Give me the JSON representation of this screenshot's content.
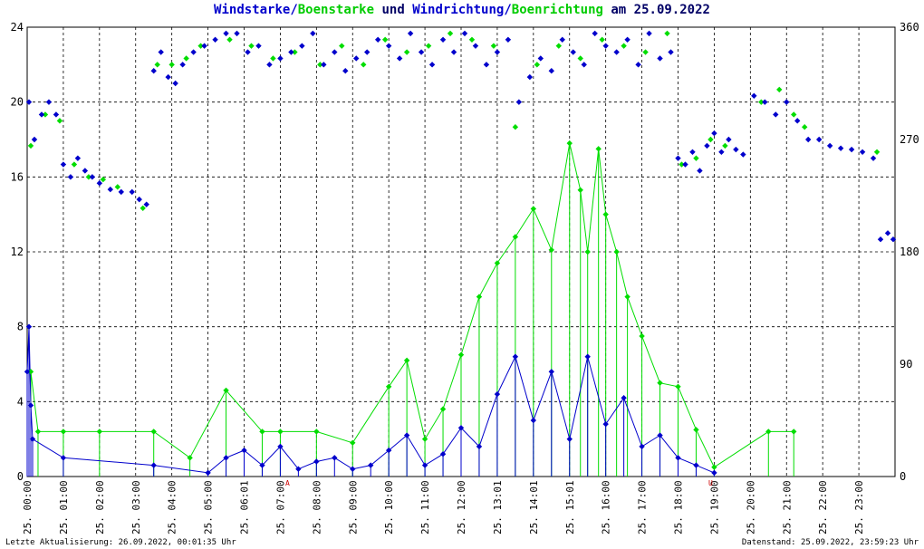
{
  "header": {
    "title_part1": "Windstarke/",
    "title_part2": "Boenstarke",
    "title_part3": " und ",
    "title_part4": "Windrichtung/",
    "title_part5": "Boenrichtung",
    "title_part6": " am 25.09.2022"
  },
  "footer": {
    "left": "Letzte Aktualisierung: 26.09.2022, 00:01:35 Uhr",
    "right": "Datenstand: 25.09.2022, 23:59:23 Uhr"
  },
  "colors": {
    "wind": "#0000cc",
    "gust": "#00dd00",
    "grid": "#000000",
    "marker_red": "#cc0000"
  },
  "chart_data": {
    "type": "scatter",
    "x_tick_labels": [
      "25. 00:00",
      "25. 01:00",
      "25. 02:00",
      "25. 03:00",
      "25. 04:00",
      "25. 05:00",
      "25. 06:01",
      "25. 07:00",
      "25. 08:00",
      "25. 09:00",
      "25. 10:00",
      "25. 11:00",
      "25. 12:00",
      "25. 13:01",
      "25. 14:01",
      "25. 15:01",
      "25. 16:00",
      "25. 17:00",
      "25. 18:00",
      "25. 19:00",
      "25. 20:00",
      "25. 21:00",
      "25. 22:00",
      "25. 23:00"
    ],
    "x_range_hours": [
      0,
      24
    ],
    "y_left": {
      "ticks": [
        "0",
        "4",
        "8",
        "12",
        "16",
        "20",
        "24"
      ],
      "range": [
        0,
        24
      ]
    },
    "y_right": {
      "ticks": [
        "0",
        "90",
        "180",
        "270",
        "360"
      ],
      "range": [
        0,
        360
      ]
    },
    "red_markers": [
      "A",
      "U"
    ],
    "series": [
      {
        "key": "direction_wind",
        "axis": "right",
        "points": [
          [
            0.05,
            300
          ],
          [
            0.2,
            270
          ],
          [
            0.4,
            290
          ],
          [
            0.6,
            300
          ],
          [
            0.8,
            290
          ],
          [
            1.0,
            250
          ],
          [
            1.2,
            240
          ],
          [
            1.4,
            255
          ],
          [
            1.6,
            245
          ],
          [
            1.8,
            240
          ],
          [
            2.0,
            235
          ],
          [
            2.3,
            230
          ],
          [
            2.6,
            228
          ],
          [
            2.9,
            228
          ],
          [
            3.1,
            222
          ],
          [
            3.3,
            218
          ],
          [
            3.5,
            325
          ],
          [
            3.7,
            340
          ],
          [
            3.9,
            320
          ],
          [
            4.1,
            315
          ],
          [
            4.3,
            330
          ],
          [
            4.6,
            340
          ],
          [
            4.9,
            345
          ],
          [
            5.2,
            350
          ],
          [
            5.5,
            355
          ],
          [
            5.8,
            355
          ],
          [
            6.1,
            340
          ],
          [
            6.4,
            345
          ],
          [
            6.7,
            330
          ],
          [
            7.0,
            335
          ],
          [
            7.3,
            340
          ],
          [
            7.6,
            345
          ],
          [
            7.9,
            355
          ],
          [
            8.2,
            330
          ],
          [
            8.5,
            340
          ],
          [
            8.8,
            325
          ],
          [
            9.1,
            335
          ],
          [
            9.4,
            340
          ],
          [
            9.7,
            350
          ],
          [
            10.0,
            345
          ],
          [
            10.3,
            335
          ],
          [
            10.6,
            355
          ],
          [
            10.9,
            340
          ],
          [
            11.2,
            330
          ],
          [
            11.5,
            350
          ],
          [
            11.8,
            340
          ],
          [
            12.1,
            355
          ],
          [
            12.4,
            345
          ],
          [
            12.7,
            330
          ],
          [
            13.0,
            340
          ],
          [
            13.3,
            350
          ],
          [
            13.6,
            300
          ],
          [
            13.9,
            320
          ],
          [
            14.2,
            335
          ],
          [
            14.5,
            325
          ],
          [
            14.8,
            350
          ],
          [
            15.1,
            340
          ],
          [
            15.4,
            330
          ],
          [
            15.7,
            355
          ],
          [
            16.0,
            345
          ],
          [
            16.3,
            340
          ],
          [
            16.6,
            350
          ],
          [
            16.9,
            330
          ],
          [
            17.2,
            355
          ],
          [
            17.5,
            335
          ],
          [
            17.8,
            340
          ],
          [
            18.0,
            255
          ],
          [
            18.2,
            250
          ],
          [
            18.4,
            260
          ],
          [
            18.6,
            245
          ],
          [
            18.8,
            265
          ],
          [
            19.0,
            275
          ],
          [
            19.2,
            260
          ],
          [
            19.4,
            270
          ],
          [
            19.6,
            262
          ],
          [
            19.8,
            258
          ],
          [
            20.1,
            305
          ],
          [
            20.4,
            300
          ],
          [
            20.7,
            290
          ],
          [
            21.0,
            300
          ],
          [
            21.3,
            285
          ],
          [
            21.6,
            270
          ],
          [
            21.9,
            270
          ],
          [
            22.2,
            265
          ],
          [
            22.5,
            263
          ],
          [
            22.8,
            262
          ],
          [
            23.1,
            260
          ],
          [
            23.4,
            255
          ],
          [
            23.6,
            190
          ],
          [
            23.8,
            195
          ],
          [
            23.95,
            190
          ]
        ]
      },
      {
        "key": "direction_gust",
        "axis": "right",
        "points": [
          [
            0.1,
            265
          ],
          [
            0.5,
            290
          ],
          [
            0.9,
            285
          ],
          [
            1.3,
            250
          ],
          [
            1.7,
            240
          ],
          [
            2.1,
            238
          ],
          [
            2.5,
            232
          ],
          [
            3.2,
            215
          ],
          [
            3.6,
            330
          ],
          [
            4.0,
            330
          ],
          [
            4.4,
            335
          ],
          [
            4.8,
            345
          ],
          [
            5.6,
            350
          ],
          [
            6.2,
            345
          ],
          [
            6.8,
            335
          ],
          [
            7.4,
            340
          ],
          [
            8.1,
            330
          ],
          [
            8.7,
            345
          ],
          [
            9.3,
            330
          ],
          [
            9.9,
            350
          ],
          [
            10.5,
            340
          ],
          [
            11.1,
            345
          ],
          [
            11.7,
            355
          ],
          [
            12.3,
            350
          ],
          [
            12.9,
            345
          ],
          [
            13.5,
            280
          ],
          [
            14.1,
            330
          ],
          [
            14.7,
            345
          ],
          [
            15.3,
            335
          ],
          [
            15.9,
            350
          ],
          [
            16.5,
            345
          ],
          [
            17.1,
            340
          ],
          [
            17.7,
            355
          ],
          [
            18.1,
            250
          ],
          [
            18.5,
            255
          ],
          [
            18.9,
            270
          ],
          [
            19.3,
            265
          ],
          [
            20.3,
            300
          ],
          [
            20.8,
            310
          ],
          [
            21.2,
            290
          ],
          [
            21.5,
            280
          ],
          [
            23.5,
            260
          ]
        ]
      },
      {
        "key": "speed_wind",
        "axis": "left",
        "points": [
          [
            0.0,
            5.6
          ],
          [
            0.05,
            8
          ],
          [
            0.1,
            3.8
          ],
          [
            0.15,
            2
          ],
          [
            1.0,
            1
          ],
          [
            3.5,
            0.6
          ],
          [
            5.0,
            0.2
          ],
          [
            5.5,
            1
          ],
          [
            6.0,
            1.4
          ],
          [
            6.5,
            0.6
          ],
          [
            7.0,
            1.6
          ],
          [
            7.5,
            0.4
          ],
          [
            8.0,
            0.8
          ],
          [
            8.5,
            1
          ],
          [
            9.0,
            0.4
          ],
          [
            9.5,
            0.6
          ],
          [
            10.0,
            1.4
          ],
          [
            10.5,
            2.2
          ],
          [
            11.0,
            0.6
          ],
          [
            11.5,
            1.2
          ],
          [
            12.0,
            2.6
          ],
          [
            12.5,
            1.6
          ],
          [
            13.0,
            4.4
          ],
          [
            13.5,
            6.4
          ],
          [
            14.0,
            3
          ],
          [
            14.5,
            5.6
          ],
          [
            15.0,
            2
          ],
          [
            15.5,
            6.4
          ],
          [
            16.0,
            2.8
          ],
          [
            16.5,
            4.2
          ],
          [
            17.0,
            1.6
          ],
          [
            17.5,
            2.2
          ],
          [
            18.0,
            1
          ],
          [
            18.5,
            0.6
          ],
          [
            19.0,
            0.2
          ]
        ]
      },
      {
        "key": "speed_gust",
        "axis": "left",
        "points": [
          [
            0.1,
            5.6
          ],
          [
            0.3,
            2.4
          ],
          [
            1.0,
            2.4
          ],
          [
            2.0,
            2.4
          ],
          [
            3.5,
            2.4
          ],
          [
            4.5,
            1
          ],
          [
            5.5,
            4.6
          ],
          [
            6.5,
            2.4
          ],
          [
            7.0,
            2.4
          ],
          [
            8.0,
            2.4
          ],
          [
            9.0,
            1.8
          ],
          [
            10.0,
            4.8
          ],
          [
            10.5,
            6.2
          ],
          [
            11.0,
            2
          ],
          [
            11.5,
            3.6
          ],
          [
            12.0,
            6.5
          ],
          [
            12.5,
            9.6
          ],
          [
            13.0,
            11.4
          ],
          [
            13.5,
            12.8
          ],
          [
            14.0,
            14.3
          ],
          [
            14.5,
            12.1
          ],
          [
            15.0,
            17.8
          ],
          [
            15.3,
            15.3
          ],
          [
            15.5,
            12
          ],
          [
            15.8,
            17.5
          ],
          [
            16.0,
            14
          ],
          [
            16.3,
            12
          ],
          [
            16.6,
            9.6
          ],
          [
            17.0,
            7.5
          ],
          [
            17.5,
            5
          ],
          [
            18.0,
            4.8
          ],
          [
            18.5,
            2.5
          ],
          [
            19.0,
            0.5
          ],
          [
            20.5,
            2.4
          ],
          [
            21.2,
            2.4
          ]
        ]
      }
    ]
  }
}
